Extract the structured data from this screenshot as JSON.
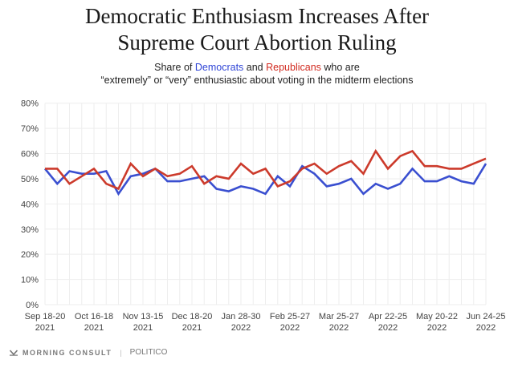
{
  "title_line1": "Democratic Enthusiasm Increases After",
  "title_line2": "Supreme Court Abortion Ruling",
  "subtitle": {
    "prefix": "Share of ",
    "dem": "Democrats",
    "mid": " and ",
    "rep": "Republicans",
    "suffix": " who are",
    "line2": "“extremely” or “very” enthusiastic about voting in the midterm elections"
  },
  "footer": {
    "source1": "MORNING CONSULT",
    "source2": "POLITICO"
  },
  "colors": {
    "democrats": "#3a4fd0",
    "republicans": "#cc3a2b",
    "grid": "#eeeeee"
  },
  "chart_data": {
    "type": "line",
    "title": "Democratic Enthusiasm Increases After Supreme Court Abortion Ruling",
    "subtitle": "Share of Democrats and Republicans who are “extremely” or “very” enthusiastic about voting in the midterm elections",
    "xlabel": "",
    "ylabel": "",
    "ylim": [
      0,
      80
    ],
    "yticks": [
      "0%",
      "10%",
      "20%",
      "30%",
      "40%",
      "50%",
      "60%",
      "70%",
      "80%"
    ],
    "grid": true,
    "legend": "in subtitle (colored words)",
    "x_tick_labels": [
      {
        "index": 0,
        "line1": "Sep 18-20",
        "line2": "2021"
      },
      {
        "index": 4,
        "line1": "Oct 16-18",
        "line2": "2021"
      },
      {
        "index": 8,
        "line1": "Nov 13-15",
        "line2": "2021"
      },
      {
        "index": 12,
        "line1": "Dec 18-20",
        "line2": "2021"
      },
      {
        "index": 16,
        "line1": "Jan 28-30",
        "line2": "2022"
      },
      {
        "index": 20,
        "line1": "Feb 25-27",
        "line2": "2022"
      },
      {
        "index": 24,
        "line1": "Mar 25-27",
        "line2": "2022"
      },
      {
        "index": 28,
        "line1": "Apr 22-25",
        "line2": "2022"
      },
      {
        "index": 32,
        "line1": "May 20-22",
        "line2": "2022"
      },
      {
        "index": 36,
        "line1": "Jun 24-25",
        "line2": "2022"
      }
    ],
    "n_points": 37,
    "series": [
      {
        "name": "Democrats",
        "color": "#3a4fd0",
        "values": [
          54,
          48,
          53,
          52,
          52,
          53,
          44,
          51,
          52,
          54,
          49,
          49,
          50,
          51,
          46,
          45,
          47,
          46,
          44,
          51,
          47,
          55,
          52,
          47,
          48,
          50,
          44,
          48,
          46,
          48,
          54,
          49,
          49,
          51,
          49,
          48,
          56
        ]
      },
      {
        "name": "Republicans",
        "color": "#cc3a2b",
        "values": [
          54,
          54,
          48,
          51,
          54,
          48,
          46,
          56,
          51,
          54,
          51,
          52,
          55,
          48,
          51,
          50,
          56,
          52,
          54,
          47,
          49,
          54,
          56,
          52,
          55,
          57,
          52,
          61,
          54,
          59,
          61,
          55,
          55,
          54,
          54,
          56,
          58
        ]
      }
    ]
  }
}
